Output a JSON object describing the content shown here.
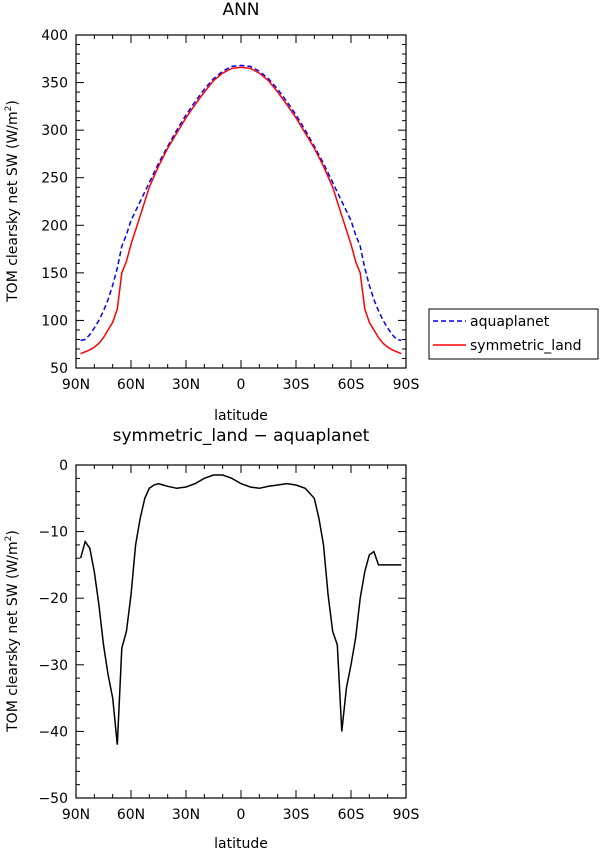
{
  "chart_data": [
    {
      "type": "line",
      "title": "ANN",
      "xlabel": "latitude",
      "ylabel": "TOM clearsky net SW (W/m",
      "ylabel_sup": "2",
      "ylabel_tail": ")",
      "xlim": [
        -90,
        90
      ],
      "ylim": [
        50,
        400
      ],
      "x_ticks": [
        -90,
        -60,
        -30,
        0,
        30,
        60,
        90
      ],
      "x_tick_labels": [
        "90N",
        "60N",
        "30N",
        "0",
        "30S",
        "60S",
        "90S"
      ],
      "y_ticks": [
        50,
        100,
        150,
        200,
        250,
        300,
        350,
        400
      ],
      "y_tick_labels": [
        "50",
        "100",
        "150",
        "200",
        "250",
        "300",
        "350",
        "400"
      ],
      "grid": false,
      "legend": {
        "placement": "right",
        "entries": [
          {
            "label": "aquaplanet",
            "series": 0
          },
          {
            "label": "symmetric_land",
            "series": 1
          }
        ]
      },
      "series": [
        {
          "name": "aquaplanet",
          "color": "#0000ff",
          "dash": "dashed",
          "x": [
            -87.5,
            -85,
            -82.5,
            -80,
            -77.5,
            -75,
            -72.5,
            -70,
            -67.5,
            -65,
            -62.5,
            -60,
            -55,
            -50,
            -45,
            -40,
            -35,
            -30,
            -25,
            -20,
            -15,
            -10,
            -5,
            0,
            5,
            10,
            15,
            20,
            25,
            30,
            35,
            40,
            45,
            50,
            55,
            60,
            62.5,
            65,
            67.5,
            70,
            72.5,
            75,
            77.5,
            80,
            82.5,
            85,
            87.5
          ],
          "y": [
            79,
            80,
            85,
            92,
            100,
            110,
            122,
            137,
            155,
            178,
            190,
            205,
            225,
            245,
            265,
            283,
            300,
            316,
            330,
            343,
            354,
            362,
            367,
            368,
            367,
            362,
            354,
            343,
            330,
            316,
            300,
            283,
            265,
            245,
            225,
            205,
            190,
            178,
            155,
            137,
            122,
            110,
            100,
            92,
            85,
            80,
            79
          ]
        },
        {
          "name": "symmetric_land",
          "color": "#ff0000",
          "dash": "solid",
          "x": [
            -87.5,
            -85,
            -82.5,
            -80,
            -77.5,
            -75,
            -72.5,
            -70,
            -67.5,
            -65,
            -62.5,
            -60,
            -55,
            -50,
            -45,
            -40,
            -35,
            -30,
            -25,
            -20,
            -15,
            -10,
            -5,
            0,
            5,
            10,
            15,
            20,
            25,
            30,
            35,
            40,
            45,
            50,
            55,
            60,
            62.5,
            65,
            67.5,
            70,
            72.5,
            75,
            77.5,
            80,
            82.5,
            85,
            87.5
          ],
          "y": [
            65,
            67,
            69,
            72,
            76,
            82,
            90,
            98,
            112,
            150,
            162,
            180,
            210,
            240,
            262,
            281,
            297,
            313,
            327,
            340,
            352,
            360,
            365,
            366,
            365,
            360,
            352,
            340,
            327,
            313,
            297,
            281,
            262,
            240,
            210,
            180,
            162,
            150,
            112,
            98,
            90,
            82,
            76,
            72,
            69,
            67,
            65
          ]
        }
      ]
    },
    {
      "type": "line",
      "title": "symmetric_land − aquaplanet",
      "xlabel": "latitude",
      "ylabel": "TOM clearsky net SW (W/m",
      "ylabel_sup": "2",
      "ylabel_tail": ")",
      "xlim": [
        -90,
        90
      ],
      "ylim": [
        -50,
        0
      ],
      "x_ticks": [
        -90,
        -60,
        -30,
        0,
        30,
        60,
        90
      ],
      "x_tick_labels": [
        "90N",
        "60N",
        "30N",
        "0",
        "30S",
        "60S",
        "90S"
      ],
      "y_ticks": [
        -50,
        -40,
        -30,
        -20,
        -10,
        0
      ],
      "y_tick_labels": [
        "−50",
        "−40",
        "−30",
        "−20",
        "−10",
        "0"
      ],
      "grid": false,
      "series": [
        {
          "name": "",
          "color": "#000000",
          "dash": "solid",
          "x": [
            -87.5,
            -85,
            -82.5,
            -80,
            -77.5,
            -75,
            -72.5,
            -70,
            -67.5,
            -65,
            -62.5,
            -60,
            -57.5,
            -55,
            -52.5,
            -50,
            -47.5,
            -45,
            -42.5,
            -40,
            -35,
            -30,
            -25,
            -20,
            -15,
            -10,
            -5,
            0,
            5,
            10,
            15,
            20,
            25,
            30,
            35,
            40,
            42.5,
            45,
            47.5,
            50,
            52.5,
            55,
            57.5,
            60,
            62.5,
            65,
            67.5,
            70,
            72.5,
            75,
            77.5,
            80,
            82.5,
            85,
            87.5
          ],
          "y": [
            -14,
            -11.5,
            -12.5,
            -16,
            -21,
            -27,
            -31.5,
            -35,
            -42,
            -27.5,
            -25,
            -19.5,
            -12,
            -8,
            -5,
            -3.5,
            -3,
            -2.8,
            -3,
            -3.2,
            -3.5,
            -3.3,
            -2.8,
            -2,
            -1.5,
            -1.5,
            -2,
            -2.8,
            -3.3,
            -3.5,
            -3.2,
            -3,
            -2.8,
            -3,
            -3.5,
            -5,
            -8,
            -12,
            -19.5,
            -25,
            -27,
            -40,
            -33.5,
            -30,
            -26,
            -20,
            -16,
            -13.5,
            -13,
            -15,
            -15,
            -15,
            -15,
            -15,
            -15
          ]
        }
      ]
    }
  ]
}
